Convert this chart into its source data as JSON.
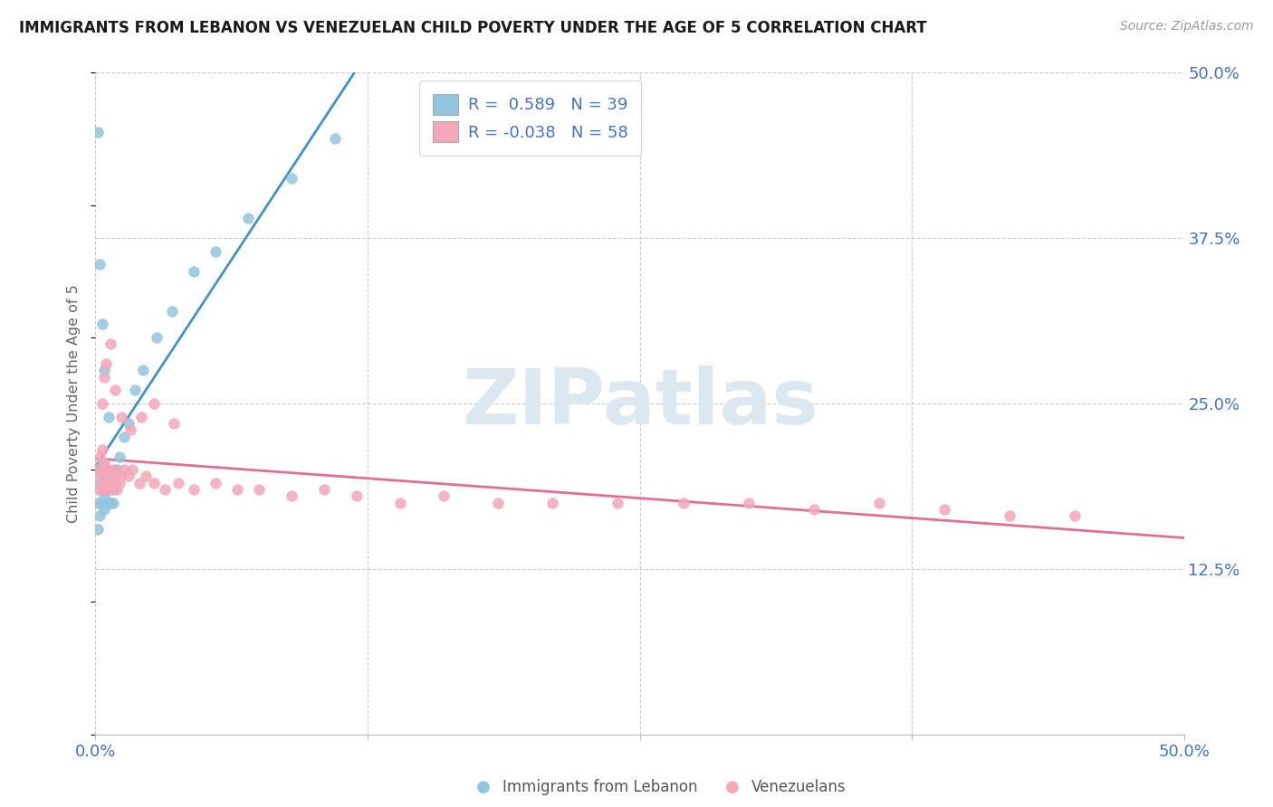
{
  "title": "IMMIGRANTS FROM LEBANON VS VENEZUELAN CHILD POVERTY UNDER THE AGE OF 5 CORRELATION CHART",
  "source": "Source: ZipAtlas.com",
  "ylabel": "Child Poverty Under the Age of 5",
  "xlim": [
    0.0,
    0.5
  ],
  "ylim": [
    0.0,
    0.5
  ],
  "blue_scatter_color": "#92c5de",
  "pink_scatter_color": "#f4a7b9",
  "blue_line_color": "#4393c3",
  "pink_line_color": "#e07090",
  "title_color": "#1a1a1a",
  "axis_label_color": "#4472C4",
  "grid_color": "#cccccc",
  "watermark_text": "ZIPatlas",
  "watermark_color": "#dce8f0",
  "lebanon_N": 39,
  "venezuela_N": 58,
  "lebanon_R": 0.589,
  "venezuela_R": -0.038,
  "lebanon_x": [
    0.001,
    0.001,
    0.002,
    0.002,
    0.002,
    0.003,
    0.003,
    0.003,
    0.004,
    0.004,
    0.004,
    0.005,
    0.005,
    0.005,
    0.006,
    0.006,
    0.007,
    0.007,
    0.008,
    0.008,
    0.009,
    0.01,
    0.011,
    0.013,
    0.015,
    0.018,
    0.022,
    0.028,
    0.035,
    0.045,
    0.055,
    0.07,
    0.09,
    0.11,
    0.001,
    0.002,
    0.003,
    0.004,
    0.006
  ],
  "lebanon_y": [
    0.175,
    0.155,
    0.165,
    0.19,
    0.2,
    0.175,
    0.185,
    0.205,
    0.17,
    0.18,
    0.195,
    0.175,
    0.185,
    0.2,
    0.175,
    0.19,
    0.175,
    0.19,
    0.175,
    0.185,
    0.19,
    0.2,
    0.21,
    0.225,
    0.235,
    0.26,
    0.275,
    0.3,
    0.32,
    0.35,
    0.365,
    0.39,
    0.42,
    0.45,
    0.455,
    0.355,
    0.31,
    0.275,
    0.24
  ],
  "venezuela_x": [
    0.001,
    0.001,
    0.002,
    0.002,
    0.003,
    0.003,
    0.003,
    0.004,
    0.004,
    0.005,
    0.005,
    0.006,
    0.006,
    0.007,
    0.007,
    0.008,
    0.008,
    0.009,
    0.01,
    0.011,
    0.012,
    0.013,
    0.015,
    0.017,
    0.02,
    0.023,
    0.027,
    0.032,
    0.038,
    0.045,
    0.055,
    0.065,
    0.075,
    0.09,
    0.105,
    0.12,
    0.14,
    0.16,
    0.185,
    0.21,
    0.24,
    0.27,
    0.3,
    0.33,
    0.36,
    0.39,
    0.42,
    0.45,
    0.003,
    0.004,
    0.005,
    0.007,
    0.009,
    0.012,
    0.016,
    0.021,
    0.027,
    0.036
  ],
  "venezuela_y": [
    0.185,
    0.2,
    0.195,
    0.21,
    0.19,
    0.2,
    0.215,
    0.185,
    0.205,
    0.19,
    0.2,
    0.185,
    0.2,
    0.185,
    0.195,
    0.19,
    0.2,
    0.195,
    0.185,
    0.19,
    0.195,
    0.2,
    0.195,
    0.2,
    0.19,
    0.195,
    0.19,
    0.185,
    0.19,
    0.185,
    0.19,
    0.185,
    0.185,
    0.18,
    0.185,
    0.18,
    0.175,
    0.18,
    0.175,
    0.175,
    0.175,
    0.175,
    0.175,
    0.17,
    0.175,
    0.17,
    0.165,
    0.165,
    0.25,
    0.27,
    0.28,
    0.295,
    0.26,
    0.24,
    0.23,
    0.24,
    0.25,
    0.235
  ],
  "ytick_positions": [
    0.0,
    0.125,
    0.25,
    0.375,
    0.5
  ],
  "ytick_labels_right": [
    "",
    "12.5%",
    "25.0%",
    "37.5%",
    "50.0%"
  ],
  "xtick_positions": [
    0.0,
    0.125,
    0.25,
    0.375,
    0.5
  ],
  "xtick_labels": [
    "0.0%",
    "",
    "",
    "",
    "50.0%"
  ]
}
